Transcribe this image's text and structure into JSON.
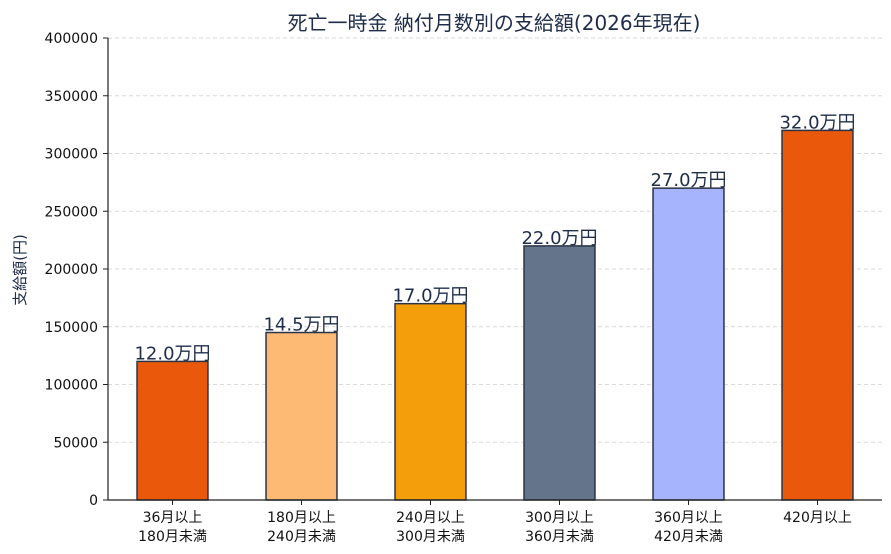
{
  "chart_data": {
    "type": "bar",
    "title": "死亡一時金 納付月数別の支給額(2026年現在)",
    "xlabel": "",
    "ylabel": "支給額(円)",
    "ylim": [
      0,
      400000
    ],
    "yticks": [
      0,
      50000,
      100000,
      150000,
      200000,
      250000,
      300000,
      350000,
      400000
    ],
    "grid": "y",
    "categories": [
      [
        "36月以上",
        "180月未満"
      ],
      [
        "180月以上",
        "240月未満"
      ],
      [
        "240月以上",
        "300月未満"
      ],
      [
        "300月以上",
        "360月未満"
      ],
      [
        "360月以上",
        "420月未満"
      ],
      [
        "420月以上"
      ]
    ],
    "values": [
      120000,
      145000,
      170000,
      220000,
      270000,
      320000
    ],
    "data_labels": [
      "12.0万円",
      "14.5万円",
      "17.0万円",
      "22.0万円",
      "27.0万円",
      "32.0万円"
    ],
    "colors": [
      "#ea580c",
      "#fdba74",
      "#f59e0b",
      "#64748b",
      "#a5b4fc",
      "#ea580c"
    ]
  }
}
